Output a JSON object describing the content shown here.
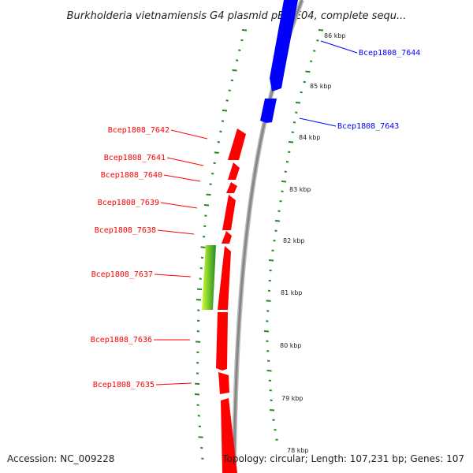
{
  "header": {
    "title": "Burkholderia vietnamiensis G4 plasmid pBVIE04, complete sequ..."
  },
  "footer": {
    "accession": "Accession: NC_009228",
    "summary": "Topology: circular; Length: 107,231 bp; Genes: 107"
  },
  "colors": {
    "reverse_gene": "#ff0000",
    "forward_gene": "#0000ff",
    "highlight_light": "#ccff33",
    "highlight_dark": "#228b22",
    "tick": "#228b22",
    "backbone": "#888888"
  },
  "kbp_ticks": [
    {
      "label": "86 kbp",
      "kbp": 86
    },
    {
      "label": "85 kbp",
      "kbp": 85
    },
    {
      "label": "84 kbp",
      "kbp": 84
    },
    {
      "label": "83 kbp",
      "kbp": 83
    },
    {
      "label": "82 kbp",
      "kbp": 82
    },
    {
      "label": "81 kbp",
      "kbp": 81
    },
    {
      "label": "80 kbp",
      "kbp": 80
    },
    {
      "label": "79 kbp",
      "kbp": 79
    },
    {
      "label": "78 kbp",
      "kbp": 78
    }
  ],
  "genes": [
    {
      "id": "Bcep1808_7644",
      "strand": "forward"
    },
    {
      "id": "Bcep1808_7643",
      "strand": "forward"
    },
    {
      "id": "Bcep1808_7642",
      "strand": "reverse"
    },
    {
      "id": "Bcep1808_7641",
      "strand": "reverse"
    },
    {
      "id": "Bcep1808_7640",
      "strand": "reverse"
    },
    {
      "id": "Bcep1808_7639",
      "strand": "reverse"
    },
    {
      "id": "Bcep1808_7638",
      "strand": "reverse"
    },
    {
      "id": "Bcep1808_7637",
      "strand": "reverse"
    },
    {
      "id": "Bcep1808_7636",
      "strand": "reverse"
    },
    {
      "id": "Bcep1808_7635",
      "strand": "reverse"
    }
  ]
}
